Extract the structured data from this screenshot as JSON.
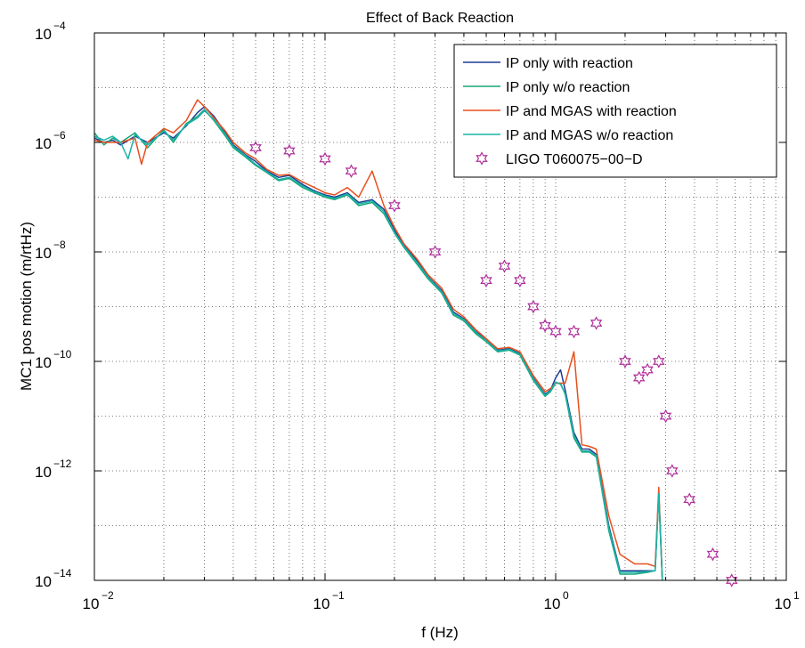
{
  "chart_data": {
    "type": "line",
    "title": "Effect of Back Reaction",
    "xlabel": "f (Hz)",
    "ylabel": "MC1 pos motion (m/rtHz)",
    "xscale": "log",
    "yscale": "log",
    "xlim": [
      0.01,
      10
    ],
    "ylim": [
      1e-14,
      0.0001
    ],
    "grid": true,
    "legend_position": "top-right",
    "x_tick_labels": [
      {
        "base": "10",
        "exp": "−2",
        "value": 0.01
      },
      {
        "base": "10",
        "exp": "−1",
        "value": 0.1
      },
      {
        "base": "10",
        "exp": "0",
        "value": 1
      },
      {
        "base": "10",
        "exp": "1",
        "value": 10
      }
    ],
    "y_tick_labels": [
      {
        "base": "10",
        "exp": "−14",
        "value": 1e-14
      },
      {
        "base": "10",
        "exp": "−12",
        "value": 1e-12
      },
      {
        "base": "10",
        "exp": "−10",
        "value": 1e-10
      },
      {
        "base": "10",
        "exp": "−8",
        "value": 1e-08
      },
      {
        "base": "10",
        "exp": "−6",
        "value": 1e-06
      },
      {
        "base": "10",
        "exp": "−4",
        "value": 0.0001
      }
    ],
    "series": [
      {
        "name": "IP only with reaction",
        "color": "#1f3a93",
        "style": "line",
        "x": [
          0.01,
          0.011,
          0.012,
          0.013,
          0.015,
          0.017,
          0.02,
          0.022,
          0.025,
          0.028,
          0.03,
          0.033,
          0.037,
          0.04,
          0.045,
          0.05,
          0.056,
          0.063,
          0.07,
          0.08,
          0.09,
          0.1,
          0.11,
          0.125,
          0.14,
          0.16,
          0.18,
          0.2,
          0.22,
          0.25,
          0.28,
          0.32,
          0.36,
          0.4,
          0.45,
          0.5,
          0.56,
          0.63,
          0.7,
          0.8,
          0.9,
          0.95,
          1.0,
          1.05,
          1.1,
          1.2,
          1.3,
          1.4,
          1.5,
          1.7,
          1.9,
          2.2,
          2.5,
          2.7,
          2.8,
          2.9
        ],
        "y": [
          1.2e-06,
          1e-06,
          1.1e-06,
          9e-07,
          1.3e-06,
          1e-06,
          1.5e-06,
          1.2e-06,
          2e-06,
          3.5e-06,
          4.5e-06,
          3e-06,
          1.5e-06,
          9e-07,
          6e-07,
          4.5e-07,
          3e-07,
          2.3e-07,
          2.5e-07,
          1.7e-07,
          1.3e-07,
          1.1e-07,
          1e-07,
          1.2e-07,
          8e-08,
          9e-08,
          6e-08,
          2.5e-08,
          1.3e-08,
          7e-09,
          3.5e-09,
          2e-09,
          8e-10,
          6e-10,
          3.5e-10,
          2.5e-10,
          1.6e-10,
          1.7e-10,
          1.4e-10,
          5e-11,
          2.5e-11,
          3e-11,
          5e-11,
          7e-11,
          3e-11,
          5e-12,
          2.5e-12,
          2.5e-12,
          2e-12,
          1e-13,
          1.5e-14,
          1.5e-14,
          1.5e-14,
          1.5e-14,
          4e-13,
          8e-15
        ]
      },
      {
        "name": "IP only w/o reaction",
        "color": "#17a67a",
        "style": "line",
        "x": [
          0.01,
          0.011,
          0.012,
          0.013,
          0.015,
          0.017,
          0.02,
          0.022,
          0.025,
          0.028,
          0.03,
          0.033,
          0.037,
          0.04,
          0.045,
          0.05,
          0.056,
          0.063,
          0.07,
          0.08,
          0.09,
          0.1,
          0.11,
          0.125,
          0.14,
          0.16,
          0.18,
          0.2,
          0.22,
          0.25,
          0.28,
          0.32,
          0.36,
          0.4,
          0.45,
          0.5,
          0.56,
          0.63,
          0.7,
          0.8,
          0.9,
          0.95,
          1.0,
          1.05,
          1.1,
          1.2,
          1.3,
          1.4,
          1.5,
          1.7,
          1.9,
          2.2,
          2.5,
          2.7,
          2.8,
          2.9
        ],
        "y": [
          1.5e-06,
          9e-07,
          1.2e-06,
          1e-06,
          1.5e-06,
          8e-07,
          1.7e-06,
          1e-06,
          2.2e-06,
          3e-06,
          4e-06,
          2.5e-06,
          1.3e-06,
          8e-07,
          5.5e-07,
          3.8e-07,
          2.8e-07,
          2e-07,
          2.2e-07,
          1.5e-07,
          1.2e-07,
          1e-07,
          9e-08,
          1.1e-07,
          7e-08,
          8e-08,
          5e-08,
          2.2e-08,
          1.2e-08,
          6e-09,
          3.2e-09,
          1.8e-09,
          7e-10,
          5.5e-10,
          3.2e-10,
          2.3e-10,
          1.5e-10,
          1.6e-10,
          1.3e-10,
          4.5e-11,
          2.3e-11,
          2.8e-11,
          4e-11,
          4e-11,
          2.5e-11,
          4e-12,
          2.2e-12,
          2.2e-12,
          1.8e-12,
          8e-14,
          1.3e-14,
          1.3e-14,
          1.4e-14,
          1.5e-14,
          3.5e-13,
          7e-15
        ]
      },
      {
        "name": "IP and MGAS with reaction",
        "color": "#e8501e",
        "style": "line",
        "x": [
          0.01,
          0.011,
          0.012,
          0.013,
          0.015,
          0.016,
          0.017,
          0.02,
          0.022,
          0.025,
          0.028,
          0.03,
          0.033,
          0.037,
          0.04,
          0.045,
          0.05,
          0.056,
          0.063,
          0.07,
          0.08,
          0.09,
          0.1,
          0.11,
          0.125,
          0.14,
          0.16,
          0.18,
          0.2,
          0.22,
          0.25,
          0.28,
          0.32,
          0.36,
          0.4,
          0.45,
          0.5,
          0.56,
          0.63,
          0.7,
          0.8,
          0.9,
          0.95,
          1.0,
          1.05,
          1.1,
          1.2,
          1.3,
          1.4,
          1.5,
          1.7,
          1.9,
          2.2,
          2.5,
          2.7,
          2.8,
          2.9
        ],
        "y": [
          1.1e-06,
          1e-06,
          1e-06,
          1e-06,
          1.2e-06,
          4e-07,
          1e-06,
          1.8e-06,
          1.5e-06,
          2.5e-06,
          6e-06,
          4.5e-06,
          2.8e-06,
          1.6e-06,
          1e-06,
          6.5e-07,
          5e-07,
          3.2e-07,
          2.5e-07,
          2.6e-07,
          1.9e-07,
          1.5e-07,
          1.2e-07,
          1.1e-07,
          1.5e-07,
          1e-07,
          3e-07,
          7e-08,
          2.8e-08,
          1.4e-08,
          7.5e-09,
          3.8e-09,
          2.2e-09,
          9e-10,
          6.5e-10,
          3.8e-10,
          2.6e-10,
          1.7e-10,
          1.8e-10,
          1.5e-10,
          5.5e-11,
          2.8e-11,
          3.2e-11,
          4e-11,
          4e-11,
          4e-11,
          1.5e-10,
          3e-12,
          2.8e-12,
          2.5e-12,
          1.5e-13,
          3e-14,
          2e-14,
          2e-14,
          1.8e-14,
          5e-13,
          8e-15
        ]
      },
      {
        "name": "IP and MGAS w/o reaction",
        "color": "#1ab3a6",
        "style": "line",
        "x": [
          0.01,
          0.011,
          0.012,
          0.013,
          0.014,
          0.015,
          0.017,
          0.02,
          0.022,
          0.025,
          0.028,
          0.03,
          0.033,
          0.037,
          0.04,
          0.045,
          0.05,
          0.056,
          0.063,
          0.07,
          0.08,
          0.09,
          0.1,
          0.11,
          0.125,
          0.14,
          0.16,
          0.18,
          0.2,
          0.22,
          0.25,
          0.28,
          0.32,
          0.36,
          0.4,
          0.45,
          0.5,
          0.56,
          0.63,
          0.7,
          0.8,
          0.9,
          0.95,
          1.0,
          1.05,
          1.1,
          1.2,
          1.3,
          1.4,
          1.5,
          1.7,
          1.9,
          2.2,
          2.5,
          2.7,
          2.8,
          2.9
        ],
        "y": [
          1.3e-06,
          1.1e-06,
          1.3e-06,
          1e-06,
          5e-07,
          1.4e-06,
          9e-07,
          1.6e-06,
          1.1e-06,
          2.1e-06,
          2.8e-06,
          3.8e-06,
          2.6e-06,
          1.4e-06,
          8.5e-07,
          5.8e-07,
          4e-07,
          2.9e-07,
          2.1e-07,
          2.3e-07,
          1.6e-07,
          1.25e-07,
          1.05e-07,
          9.5e-08,
          1.15e-07,
          7.5e-08,
          8.5e-08,
          5.5e-08,
          2.3e-08,
          1.25e-08,
          6.5e-09,
          3.4e-09,
          1.9e-09,
          7.5e-10,
          5.8e-10,
          3.4e-10,
          2.4e-10,
          1.55e-10,
          1.65e-10,
          1.35e-10,
          4.8e-11,
          2.4e-11,
          2.9e-11,
          4.2e-11,
          3.8e-11,
          2.6e-11,
          4.5e-12,
          2.3e-12,
          2.3e-12,
          1.9e-12,
          9e-14,
          1.4e-14,
          1.4e-14,
          1.45e-14,
          1.5e-14,
          3.8e-13,
          7e-15
        ]
      },
      {
        "name": "LIGO T060075−00−D",
        "color": "#b02e9a",
        "style": "marker",
        "x": [
          0.05,
          0.07,
          0.1,
          0.13,
          0.2,
          0.3,
          0.5,
          0.6,
          0.7,
          0.8,
          0.9,
          1.0,
          1.2,
          1.5,
          2.0,
          2.3,
          2.5,
          2.8,
          3.0,
          3.2,
          3.8,
          4.8,
          5.8
        ],
        "y": [
          8e-07,
          7e-07,
          5e-07,
          3e-07,
          7e-08,
          1e-08,
          3e-09,
          5.5e-09,
          3e-09,
          1e-09,
          4.5e-10,
          3.5e-10,
          3.5e-10,
          5e-10,
          1e-10,
          5e-11,
          7e-11,
          1e-10,
          1e-11,
          1e-12,
          3e-13,
          3e-14,
          1e-14
        ]
      }
    ]
  }
}
